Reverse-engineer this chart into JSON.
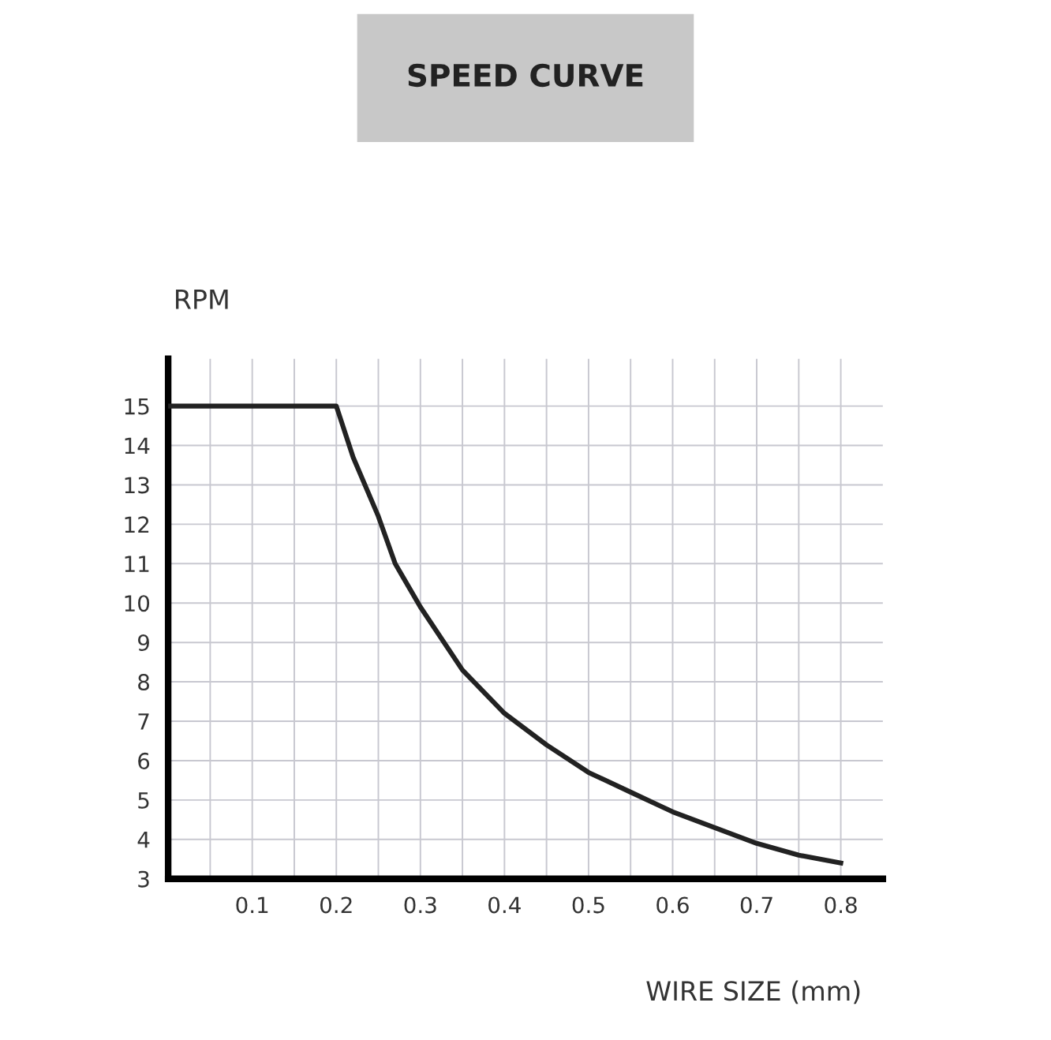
{
  "chart_data": {
    "type": "line",
    "title": "SPEED CURVE",
    "xlabel": "WIRE SIZE (mm)",
    "ylabel": "RPM",
    "x": [
      0,
      0.2,
      0.22,
      0.25,
      0.27,
      0.3,
      0.35,
      0.4,
      0.45,
      0.5,
      0.55,
      0.6,
      0.65,
      0.7,
      0.75,
      0.8
    ],
    "series": [
      {
        "color": "#222222",
        "values": [
          15,
          15,
          13.7,
          12.2,
          11.0,
          9.9,
          8.3,
          7.2,
          6.4,
          5.7,
          5.2,
          4.7,
          4.3,
          3.9,
          3.6,
          3.4
        ]
      }
    ],
    "xlim": [
      0,
      0.85
    ],
    "ylim": [
      3,
      16.2
    ],
    "xticks": [
      {
        "value": 0.05,
        "label": null
      },
      0.1,
      {
        "value": 0.15,
        "label": null
      },
      0.2,
      {
        "value": 0.25,
        "label": null
      },
      0.3,
      {
        "value": 0.35,
        "label": null
      },
      0.4,
      {
        "value": 0.45,
        "label": null
      },
      0.5,
      {
        "value": 0.55,
        "label": null
      },
      0.6,
      {
        "value": 0.65,
        "label": null
      },
      0.7,
      {
        "value": 0.75,
        "label": null
      },
      0.8
    ],
    "yticks": [
      3,
      4,
      5,
      6,
      7,
      8,
      9,
      10,
      11,
      12,
      13,
      14,
      15
    ],
    "grid": true,
    "marker": "none",
    "line_style": "solid"
  }
}
